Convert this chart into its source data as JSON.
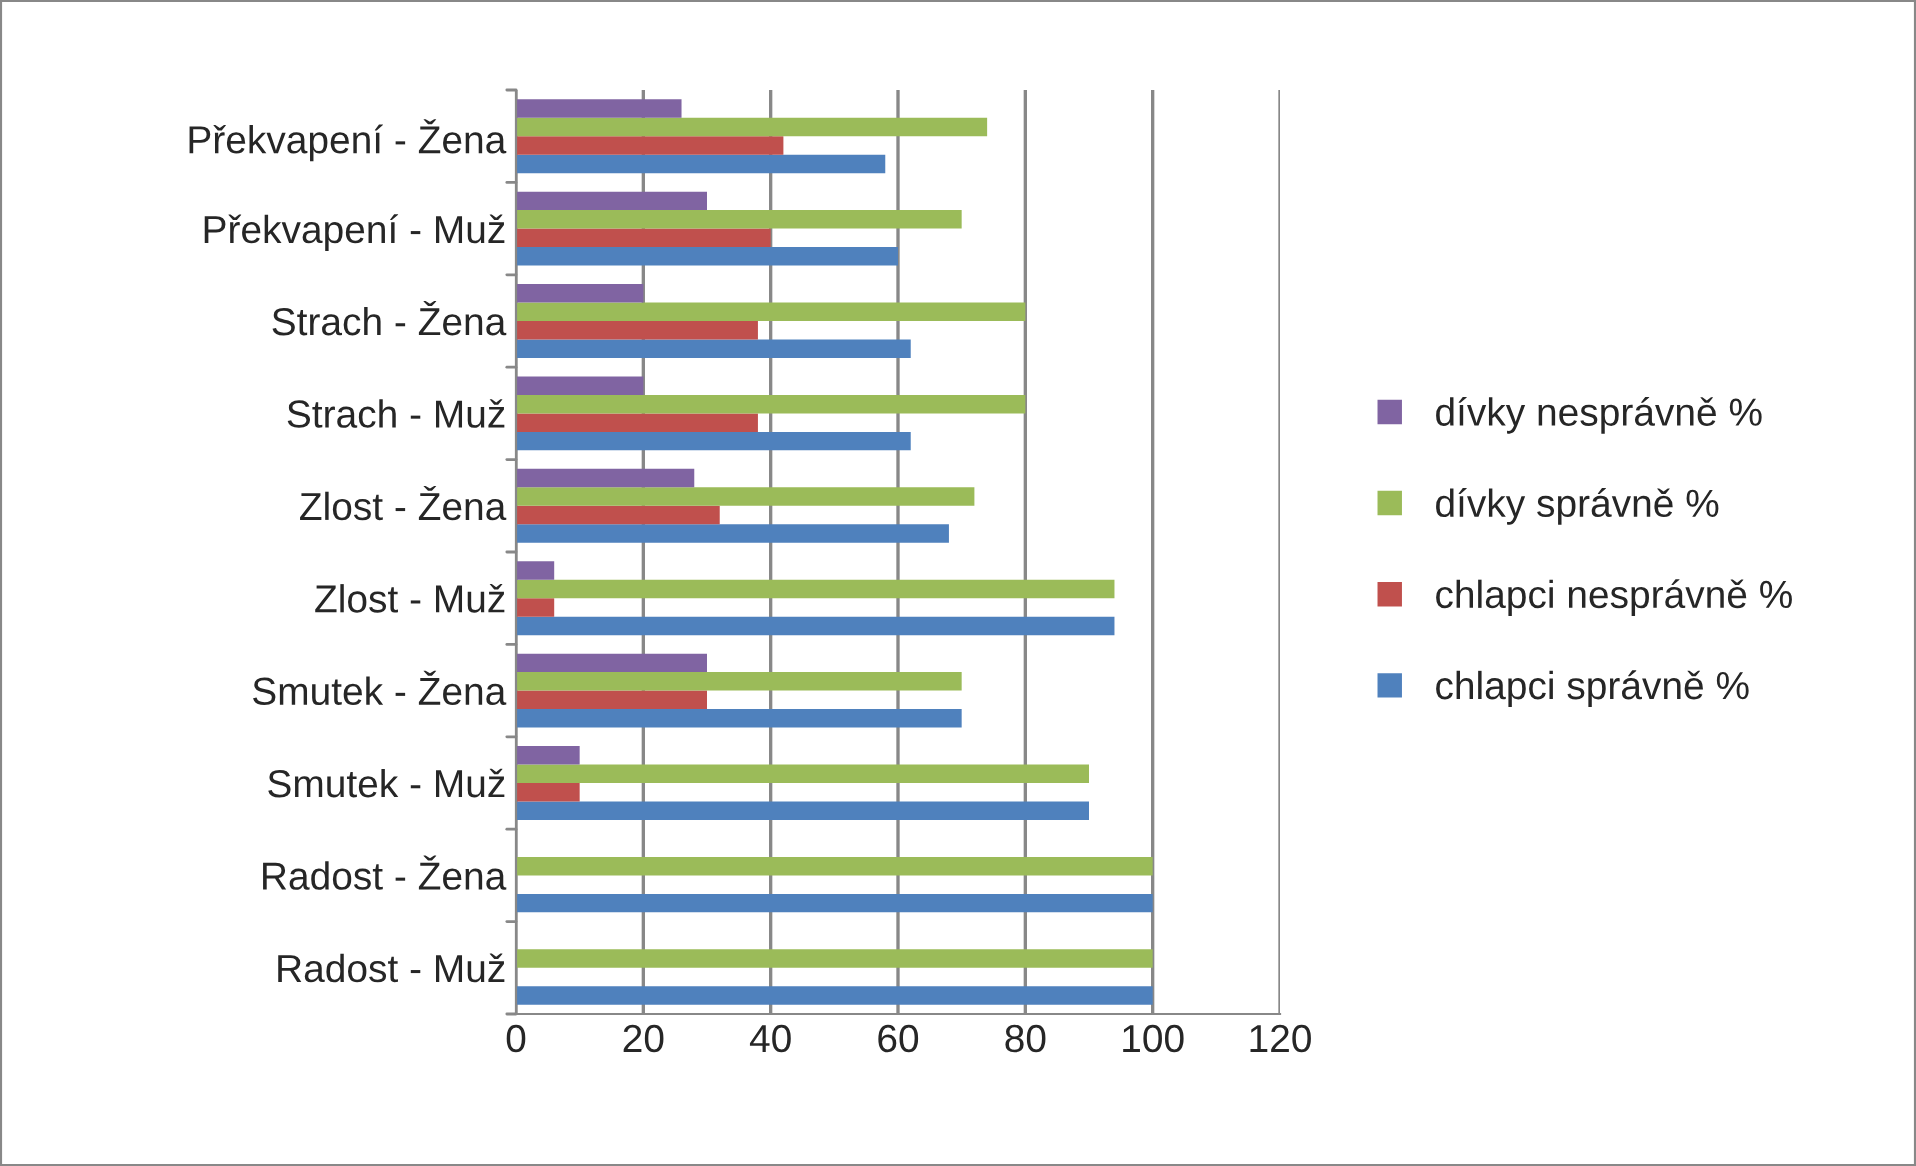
{
  "chart_data": {
    "type": "bar",
    "orientation": "horizontal",
    "categories": [
      "Překvapení - Žena",
      "Překvapení - Muž",
      "Strach - Žena",
      "Strach - Muž",
      "Zlost - Žena",
      "Zlost - Muž",
      "Smutek - Žena",
      "Smutek - Muž",
      "Radost - Žena",
      "Radost - Muž"
    ],
    "series": [
      {
        "name": "chlapci správně %",
        "color": "#4f81bd",
        "values": [
          58,
          60,
          62,
          62,
          68,
          94,
          70,
          90,
          100,
          100
        ]
      },
      {
        "name": "chlapci nesprávně %",
        "color": "#c0504d",
        "values": [
          42,
          40,
          38,
          38,
          32,
          6,
          30,
          10,
          0,
          0
        ]
      },
      {
        "name": "dívky správně %",
        "color": "#9bbb59",
        "values": [
          74,
          70,
          80,
          80,
          72,
          94,
          70,
          90,
          100,
          100
        ]
      },
      {
        "name": "dívky nesprávně %",
        "color": "#8064a2",
        "values": [
          26,
          30,
          20,
          20,
          28,
          6,
          30,
          10,
          0,
          0
        ]
      }
    ],
    "xlim": [
      0,
      120
    ],
    "xticks": [
      0,
      20,
      40,
      60,
      80,
      100,
      120
    ],
    "grid": "x",
    "legend": "right"
  }
}
